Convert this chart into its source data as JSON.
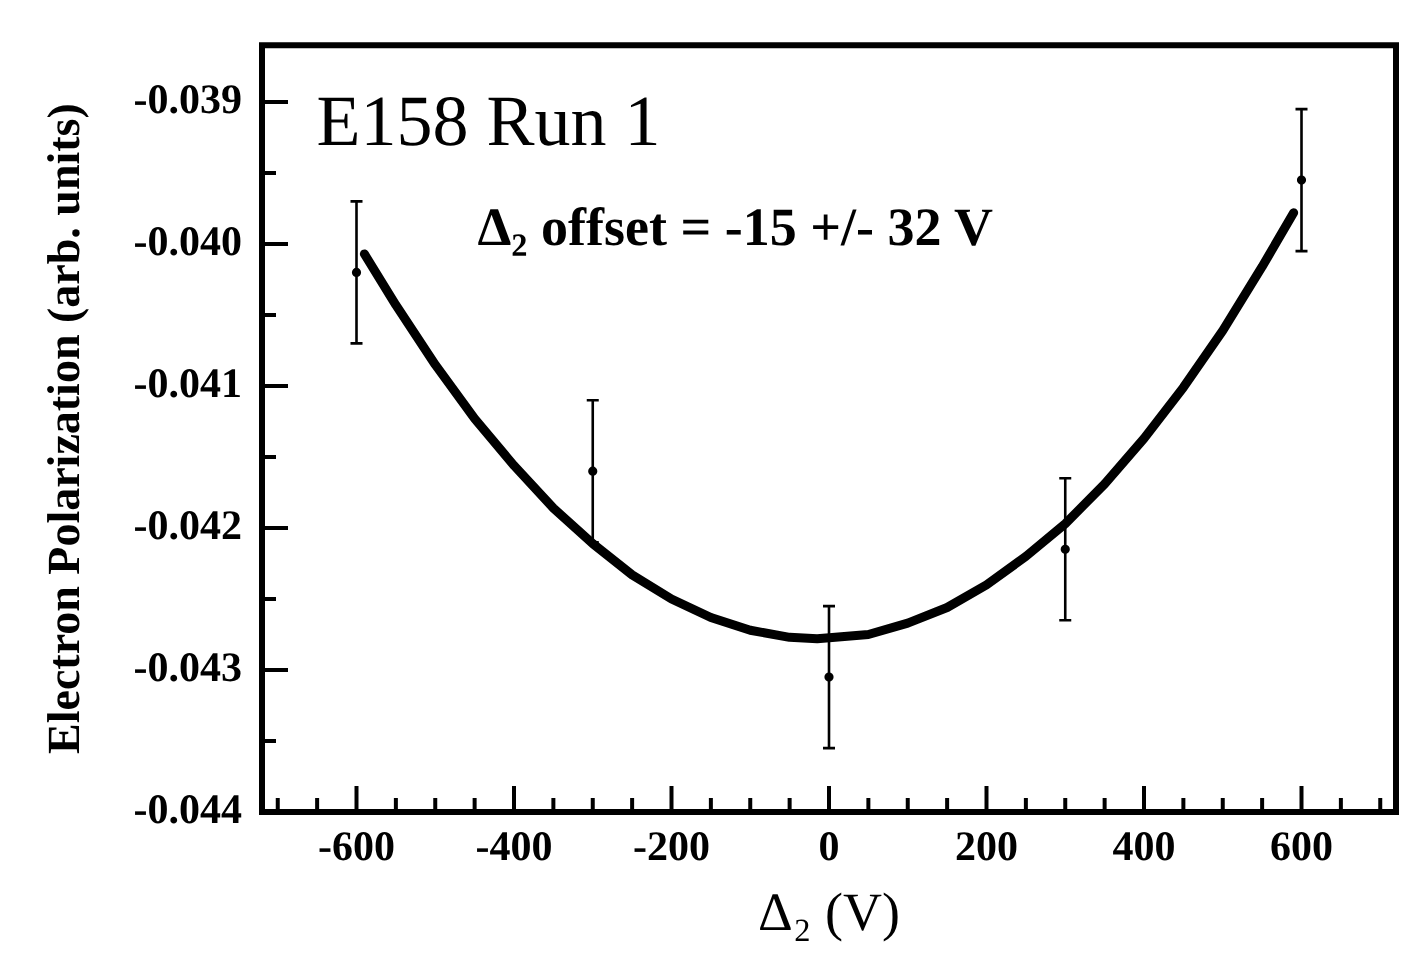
{
  "chart_data": {
    "type": "scatter",
    "xlabel": "Δ₂ (V)",
    "ylabel": "Electron Polarization (arb. units)",
    "annotations": [
      "E158 Run 1",
      "Δ₂ offset = -15 +/- 32 V"
    ],
    "xlim": [
      -720,
      720
    ],
    "ylim": [
      -0.044,
      -0.0386
    ],
    "xticks": [
      {
        "value": -700,
        "label": null
      },
      {
        "value": -650,
        "label": null
      },
      -600,
      {
        "value": -550,
        "label": null
      },
      {
        "value": -500,
        "label": null
      },
      {
        "value": -450,
        "label": null
      },
      -400,
      {
        "value": -350,
        "label": null
      },
      {
        "value": -300,
        "label": null
      },
      {
        "value": -250,
        "label": null
      },
      -200,
      {
        "value": -150,
        "label": null
      },
      {
        "value": -100,
        "label": null
      },
      {
        "value": -50,
        "label": null
      },
      0,
      {
        "value": 50,
        "label": null
      },
      {
        "value": 100,
        "label": null
      },
      {
        "value": 150,
        "label": null
      },
      200,
      {
        "value": 250,
        "label": null
      },
      {
        "value": 300,
        "label": null
      },
      {
        "value": 350,
        "label": null
      },
      400,
      {
        "value": 450,
        "label": null
      },
      {
        "value": 500,
        "label": null
      },
      {
        "value": 550,
        "label": null
      },
      600,
      {
        "value": 650,
        "label": null
      },
      {
        "value": 700,
        "label": null
      }
    ],
    "yticks": [
      -0.044,
      {
        "value": -0.0435,
        "label": null
      },
      -0.043,
      {
        "value": -0.0425,
        "label": null
      },
      -0.042,
      {
        "value": -0.0415,
        "label": null
      },
      -0.041,
      {
        "value": -0.0405,
        "label": null
      },
      {
        "value": -0.04,
        "label": "-0.040"
      },
      {
        "value": -0.0395,
        "label": null
      },
      -0.039
    ],
    "series": [
      {
        "color": "#000000",
        "marker": "circle",
        "x": [
          -600,
          -300,
          0,
          300,
          600
        ],
        "values": [
          -0.0402,
          -0.0416,
          -0.04305,
          -0.04215,
          -0.03955
        ],
        "errors": [
          0.0005,
          0.0005,
          0.0005,
          0.0005,
          0.0005
        ]
      },
      {
        "type": "line",
        "color": "#000000",
        "marker": "none",
        "x": [
          -590,
          -550,
          -500,
          -450,
          -400,
          -350,
          -300,
          -250,
          -200,
          -150,
          -100,
          -50,
          -15,
          50,
          100,
          150,
          200,
          250,
          300,
          350,
          400,
          450,
          500,
          550,
          590
        ],
        "values": [
          -0.04007,
          -0.04043,
          -0.04085,
          -0.04123,
          -0.04156,
          -0.04186,
          -0.04211,
          -0.04233,
          -0.0425,
          -0.04263,
          -0.04272,
          -0.04277,
          -0.04278,
          -0.04275,
          -0.04267,
          -0.04256,
          -0.0424,
          -0.0422,
          -0.04197,
          -0.04169,
          -0.04137,
          -0.04101,
          -0.04061,
          -0.04016,
          -0.03978
        ]
      }
    ]
  }
}
